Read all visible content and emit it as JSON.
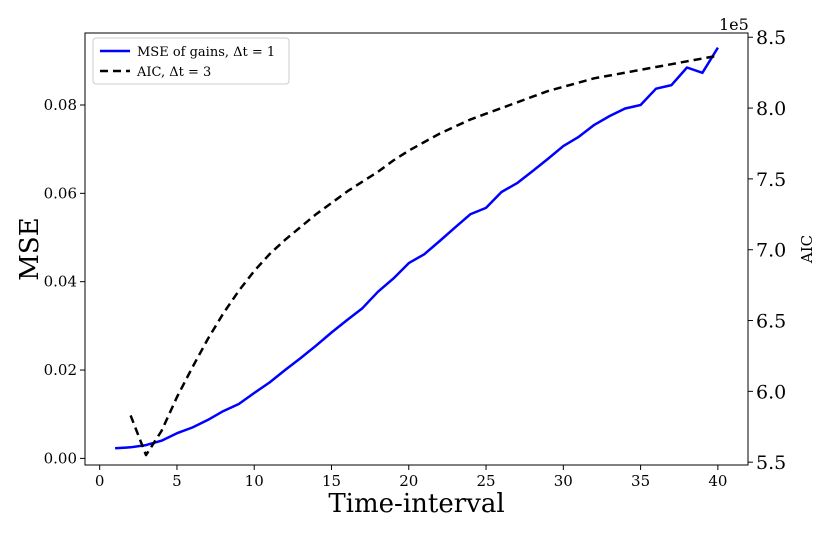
{
  "chart_data": {
    "type": "line",
    "xlabel": "Time-interval",
    "ylabel": "MSE",
    "y2label": "AIC",
    "y2_offset_label": "1e5",
    "xlim": [
      -0.95,
      41.95
    ],
    "ylim": [
      -0.0015,
      0.0963
    ],
    "y2lim": [
      5.48,
      8.53
    ],
    "x_ticks": [
      0,
      5,
      10,
      15,
      20,
      25,
      30,
      35,
      40
    ],
    "y_ticks": [
      0.0,
      0.02,
      0.04,
      0.06,
      0.08
    ],
    "y_tick_labels": [
      "0.00",
      "0.02",
      "0.04",
      "0.06",
      "0.08"
    ],
    "y2_ticks": [
      5.5,
      6.0,
      6.5,
      7.0,
      7.5,
      8.0,
      8.5
    ],
    "y2_tick_labels": [
      "5.5",
      "6.0",
      "6.5",
      "7.0",
      "7.5",
      "8.0",
      "8.5"
    ],
    "legend_position": "top-left",
    "series": [
      {
        "name": "MSE of gains, Δt = 1",
        "axis": "left",
        "color": "#0000ff",
        "style": "solid",
        "x": [
          1,
          2,
          3,
          4,
          5,
          6,
          7,
          8,
          9,
          10,
          11,
          12,
          13,
          14,
          15,
          16,
          17,
          18,
          19,
          20,
          21,
          22,
          23,
          24,
          25,
          26,
          27,
          28,
          29,
          30,
          31,
          32,
          33,
          34,
          35,
          36,
          37,
          38,
          39,
          40
        ],
        "values": [
          0.0023,
          0.0025,
          0.003,
          0.004,
          0.0057,
          0.007,
          0.0087,
          0.0107,
          0.0123,
          0.0148,
          0.0172,
          0.02,
          0.0227,
          0.0255,
          0.0285,
          0.0313,
          0.034,
          0.0377,
          0.0407,
          0.0442,
          0.0462,
          0.0492,
          0.0523,
          0.0553,
          0.0567,
          0.0603,
          0.0623,
          0.065,
          0.0678,
          0.0707,
          0.0728,
          0.0755,
          0.0775,
          0.0792,
          0.08,
          0.0837,
          0.0845,
          0.0885,
          0.0873,
          0.093
        ]
      },
      {
        "name": "AIC, Δt = 3",
        "axis": "right",
        "color": "#000000",
        "style": "dashed",
        "x": [
          2,
          3,
          4,
          5,
          6,
          7,
          8,
          9,
          10,
          11,
          12,
          13,
          14,
          15,
          16,
          17,
          18,
          19,
          20,
          21,
          22,
          23,
          24,
          25,
          26,
          27,
          28,
          29,
          30,
          31,
          32,
          33,
          34,
          35,
          36,
          37,
          38,
          39,
          40
        ],
        "values": [
          5.83,
          5.55,
          5.72,
          5.96,
          6.17,
          6.37,
          6.55,
          6.71,
          6.85,
          6.97,
          7.07,
          7.16,
          7.25,
          7.33,
          7.41,
          7.48,
          7.55,
          7.63,
          7.7,
          7.76,
          7.82,
          7.87,
          7.92,
          7.96,
          8.0,
          8.04,
          8.08,
          8.12,
          8.15,
          8.18,
          8.21,
          8.23,
          8.25,
          8.27,
          8.29,
          8.31,
          8.33,
          8.35,
          8.37
        ]
      }
    ]
  }
}
